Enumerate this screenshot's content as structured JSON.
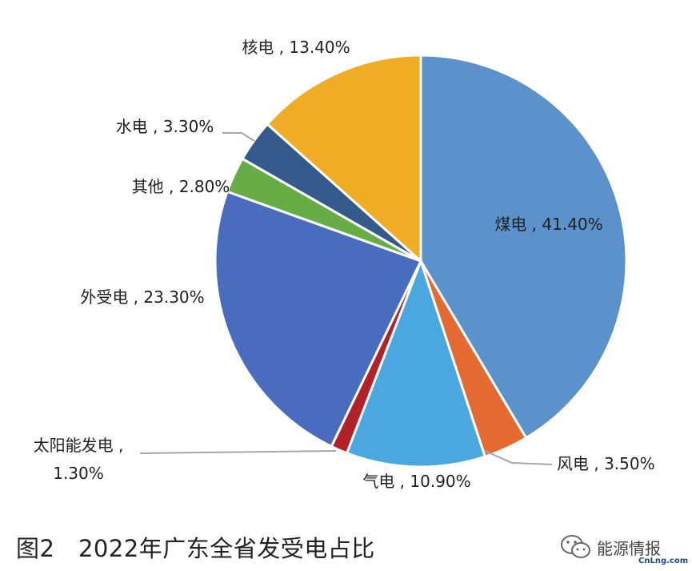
{
  "caption": "图2　2022年广东全省发受电占比",
  "watermark": {
    "text": "能源情报",
    "site": "CnLng.com",
    "icon": "wechat-icon"
  },
  "chart_data": {
    "type": "pie",
    "title": "",
    "slices": [
      {
        "name": "煤电",
        "value": 41.4,
        "label": "煤电 , 41.40%",
        "color": "#5b92cc"
      },
      {
        "name": "风电",
        "value": 3.5,
        "label": "风电 , 3.50%",
        "color": "#e46a32"
      },
      {
        "name": "气电",
        "value": 10.9,
        "label": "气电 , 10.90%",
        "color": "#4aa7e0"
      },
      {
        "name": "太阳能发电",
        "value": 1.3,
        "label": "太阳能发电 ,",
        "label2": "1.30%",
        "color": "#b22127"
      },
      {
        "name": "外受电",
        "value": 23.3,
        "label": "外受电 , 23.30%",
        "color": "#4a6cbf"
      },
      {
        "name": "其他",
        "value": 2.8,
        "label": "其他 , 2.80%",
        "color": "#67ad45"
      },
      {
        "name": "水电",
        "value": 3.3,
        "label": "水电 , 3.30%",
        "color": "#345a8c"
      },
      {
        "name": "核电",
        "value": 13.4,
        "label": "核电 , 13.40%",
        "color": "#f0ac24"
      }
    ]
  }
}
